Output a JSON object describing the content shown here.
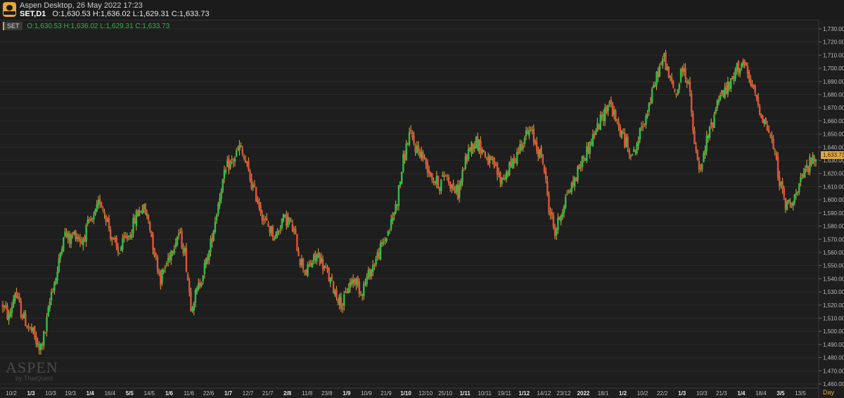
{
  "window": {
    "title": "Aspen Desktop, 26 May 2022 17:23",
    "symbol": "SET,D1",
    "ohlc_text": "O:1,630.53 H:1,636.02 L:1,629.31 C:1,633.73"
  },
  "legend": {
    "tag": "SET",
    "ohlc_text": "O:1,630.53 H:1,636.02 L:1,629.31 C:1,633.73"
  },
  "watermark": {
    "main": "ASPEN",
    "sub": "by ThaiQuest"
  },
  "price_label": "1,633.73",
  "unit_label": "Day",
  "colors": {
    "up": "#2fbf4a",
    "down": "#e8503a",
    "neutral": "#e7a83a",
    "grid": "#2b2b2b",
    "axis_text": "#bdbdbd"
  },
  "chart_data": {
    "type": "candlestick",
    "y_axis": {
      "min": 1460,
      "max": 1730,
      "ticks": [
        1460,
        1470,
        1480,
        1490,
        1500,
        1510,
        1520,
        1530,
        1540,
        1550,
        1560,
        1570,
        1580,
        1590,
        1600,
        1610,
        1620,
        1630,
        1640,
        1650,
        1660,
        1670,
        1680,
        1690,
        1700,
        1710,
        1720,
        1730
      ],
      "tick_labels": [
        "1,460.00",
        "1,470.00",
        "1,480.00",
        "1,490.00",
        "1,500.00",
        "1,510.00",
        "1,520.00",
        "1,530.00",
        "1,540.00",
        "1,550.00",
        "1,560.00",
        "1,570.00",
        "1,580.00",
        "1,590.00",
        "1,600.00",
        "1,610.00",
        "1,620.00",
        "1,630.00",
        "1,640.00",
        "1,650.00",
        "1,660.00",
        "1,670.00",
        "1,680.00",
        "1,690.00",
        "1,700.00",
        "1,710.00",
        "1,720.00",
        "1,730.00"
      ]
    },
    "x_axis": {
      "labels": [
        {
          "text": "10/2",
          "bold": false
        },
        {
          "text": "1/3",
          "bold": true
        },
        {
          "text": "10/3",
          "bold": false
        },
        {
          "text": "19/3",
          "bold": false
        },
        {
          "text": "1/4",
          "bold": true
        },
        {
          "text": "16/4",
          "bold": false
        },
        {
          "text": "5/5",
          "bold": true
        },
        {
          "text": "14/5",
          "bold": false
        },
        {
          "text": "1/6",
          "bold": true
        },
        {
          "text": "11/6",
          "bold": false
        },
        {
          "text": "22/6",
          "bold": false
        },
        {
          "text": "1/7",
          "bold": true
        },
        {
          "text": "12/7",
          "bold": false
        },
        {
          "text": "21/7",
          "bold": false
        },
        {
          "text": "2/8",
          "bold": true
        },
        {
          "text": "11/8",
          "bold": false
        },
        {
          "text": "23/8",
          "bold": false
        },
        {
          "text": "1/9",
          "bold": true
        },
        {
          "text": "10/9",
          "bold": false
        },
        {
          "text": "21/9",
          "bold": false
        },
        {
          "text": "1/10",
          "bold": true
        },
        {
          "text": "12/10",
          "bold": false
        },
        {
          "text": "25/10",
          "bold": false
        },
        {
          "text": "1/11",
          "bold": true
        },
        {
          "text": "10/11",
          "bold": false
        },
        {
          "text": "19/11",
          "bold": false
        },
        {
          "text": "1/12",
          "bold": true
        },
        {
          "text": "14/12",
          "bold": false
        },
        {
          "text": "23/12",
          "bold": false
        },
        {
          "text": "2022",
          "bold": true
        },
        {
          "text": "18/1",
          "bold": false
        },
        {
          "text": "1/2",
          "bold": true
        },
        {
          "text": "10/2",
          "bold": false
        },
        {
          "text": "22/2",
          "bold": false
        },
        {
          "text": "1/3",
          "bold": true
        },
        {
          "text": "10/3",
          "bold": false
        },
        {
          "text": "21/3",
          "bold": false
        },
        {
          "text": "1/4",
          "bold": true
        },
        {
          "text": "18/4",
          "bold": false
        },
        {
          "text": "3/5",
          "bold": true
        },
        {
          "text": "13/5",
          "bold": false
        }
      ]
    },
    "series_path": [
      [
        0,
        1520
      ],
      [
        4,
        1510
      ],
      [
        8,
        1530
      ],
      [
        12,
        1515
      ],
      [
        16,
        1505
      ],
      [
        20,
        1498
      ],
      [
        24,
        1485
      ],
      [
        28,
        1500
      ],
      [
        32,
        1530
      ],
      [
        36,
        1545
      ],
      [
        40,
        1575
      ],
      [
        44,
        1570
      ],
      [
        48,
        1575
      ],
      [
        52,
        1568
      ],
      [
        56,
        1580
      ],
      [
        60,
        1585
      ],
      [
        64,
        1600
      ],
      [
        68,
        1588
      ],
      [
        72,
        1570
      ],
      [
        76,
        1560
      ],
      [
        80,
        1568
      ],
      [
        84,
        1575
      ],
      [
        88,
        1588
      ],
      [
        92,
        1595
      ],
      [
        96,
        1585
      ],
      [
        100,
        1560
      ],
      [
        104,
        1540
      ],
      [
        108,
        1552
      ],
      [
        112,
        1565
      ],
      [
        116,
        1575
      ],
      [
        120,
        1560
      ],
      [
        124,
        1520
      ],
      [
        128,
        1530
      ],
      [
        132,
        1545
      ],
      [
        136,
        1560
      ],
      [
        140,
        1585
      ],
      [
        144,
        1610
      ],
      [
        148,
        1625
      ],
      [
        152,
        1630
      ],
      [
        156,
        1640
      ],
      [
        160,
        1628
      ],
      [
        164,
        1612
      ],
      [
        168,
        1600
      ],
      [
        172,
        1585
      ],
      [
        176,
        1578
      ],
      [
        180,
        1572
      ],
      [
        184,
        1585
      ],
      [
        188,
        1585
      ],
      [
        192,
        1575
      ],
      [
        196,
        1555
      ],
      [
        200,
        1545
      ],
      [
        204,
        1553
      ],
      [
        208,
        1558
      ],
      [
        212,
        1548
      ],
      [
        216,
        1538
      ],
      [
        220,
        1528
      ],
      [
        224,
        1520
      ],
      [
        228,
        1535
      ],
      [
        232,
        1540
      ],
      [
        236,
        1530
      ],
      [
        240,
        1540
      ],
      [
        244,
        1550
      ],
      [
        248,
        1560
      ],
      [
        252,
        1570
      ],
      [
        256,
        1582
      ],
      [
        260,
        1600
      ],
      [
        264,
        1630
      ],
      [
        268,
        1650
      ],
      [
        272,
        1640
      ],
      [
        276,
        1635
      ],
      [
        280,
        1625
      ],
      [
        284,
        1615
      ],
      [
        288,
        1612
      ],
      [
        292,
        1620
      ],
      [
        296,
        1610
      ],
      [
        300,
        1605
      ],
      [
        304,
        1625
      ],
      [
        308,
        1640
      ],
      [
        312,
        1645
      ],
      [
        316,
        1638
      ],
      [
        320,
        1630
      ],
      [
        324,
        1625
      ],
      [
        328,
        1615
      ],
      [
        332,
        1620
      ],
      [
        336,
        1628
      ],
      [
        340,
        1638
      ],
      [
        344,
        1648
      ],
      [
        348,
        1652
      ],
      [
        352,
        1640
      ],
      [
        356,
        1630
      ],
      [
        360,
        1595
      ],
      [
        364,
        1575
      ],
      [
        368,
        1590
      ],
      [
        372,
        1605
      ],
      [
        376,
        1612
      ],
      [
        380,
        1625
      ],
      [
        384,
        1635
      ],
      [
        388,
        1645
      ],
      [
        392,
        1655
      ],
      [
        396,
        1665
      ],
      [
        400,
        1675
      ],
      [
        404,
        1660
      ],
      [
        408,
        1650
      ],
      [
        412,
        1640
      ],
      [
        416,
        1635
      ],
      [
        420,
        1650
      ],
      [
        424,
        1665
      ],
      [
        428,
        1680
      ],
      [
        432,
        1698
      ],
      [
        436,
        1708
      ],
      [
        440,
        1690
      ],
      [
        444,
        1680
      ],
      [
        448,
        1700
      ],
      [
        452,
        1690
      ],
      [
        456,
        1640
      ],
      [
        460,
        1620
      ],
      [
        464,
        1645
      ],
      [
        468,
        1660
      ],
      [
        472,
        1680
      ],
      [
        476,
        1682
      ],
      [
        480,
        1688
      ],
      [
        484,
        1700
      ],
      [
        488,
        1705
      ],
      [
        492,
        1690
      ],
      [
        496,
        1680
      ],
      [
        500,
        1665
      ],
      [
        504,
        1655
      ],
      [
        508,
        1640
      ],
      [
        512,
        1615
      ],
      [
        516,
        1595
      ],
      [
        520,
        1600
      ],
      [
        524,
        1605
      ],
      [
        528,
        1620
      ],
      [
        532,
        1628
      ],
      [
        536,
        1632
      ]
    ]
  }
}
